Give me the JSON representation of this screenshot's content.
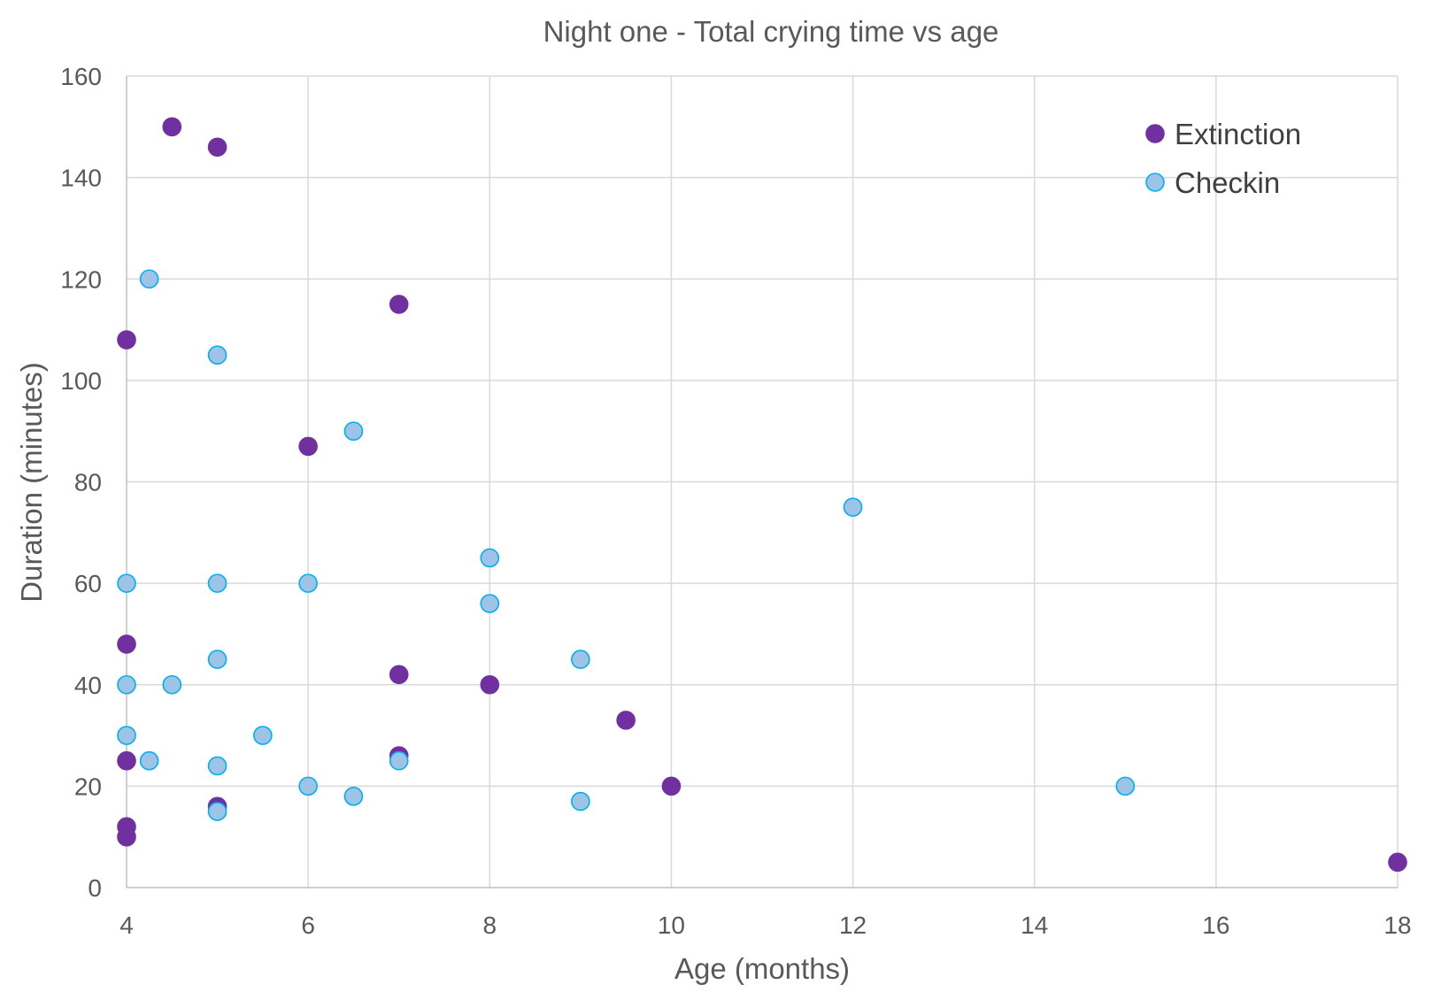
{
  "chart_data": {
    "type": "scatter",
    "title": "Night one - Total crying time vs age",
    "xlabel": "Age (months)",
    "ylabel": "Duration (minutes)",
    "xlim": [
      4,
      18
    ],
    "ylim": [
      0,
      160
    ],
    "x_ticks": [
      4,
      6,
      8,
      10,
      12,
      14,
      16,
      18
    ],
    "y_ticks": [
      0,
      20,
      40,
      60,
      80,
      100,
      120,
      140,
      160
    ],
    "grid": true,
    "legend_position": "top-right",
    "series": [
      {
        "name": "Extinction",
        "color": "#7030A0",
        "edge_color": "#7030A0",
        "points": [
          [
            4.5,
            150
          ],
          [
            5,
            146
          ],
          [
            7,
            115
          ],
          [
            4,
            108
          ],
          [
            6,
            87
          ],
          [
            4,
            48
          ],
          [
            7,
            42
          ],
          [
            8,
            40
          ],
          [
            9.5,
            33
          ],
          [
            7,
            26
          ],
          [
            4,
            25
          ],
          [
            10,
            20
          ],
          [
            5,
            16
          ],
          [
            4,
            12
          ],
          [
            4,
            10
          ],
          [
            18,
            5
          ]
        ]
      },
      {
        "name": "Checkin",
        "color": "#9DC3E6",
        "edge_color": "#00B0F0",
        "points": [
          [
            4.25,
            120
          ],
          [
            5,
            105
          ],
          [
            6.5,
            90
          ],
          [
            12,
            75
          ],
          [
            8,
            65
          ],
          [
            4,
            60
          ],
          [
            5,
            60
          ],
          [
            6,
            60
          ],
          [
            8,
            56
          ],
          [
            5,
            45
          ],
          [
            9,
            45
          ],
          [
            4,
            40
          ],
          [
            4.5,
            40
          ],
          [
            4,
            30
          ],
          [
            5.5,
            30
          ],
          [
            4.25,
            25
          ],
          [
            7,
            25
          ],
          [
            5,
            24
          ],
          [
            6,
            20
          ],
          [
            15,
            20
          ],
          [
            6.5,
            18
          ],
          [
            9,
            17
          ],
          [
            5,
            15
          ]
        ]
      }
    ]
  }
}
